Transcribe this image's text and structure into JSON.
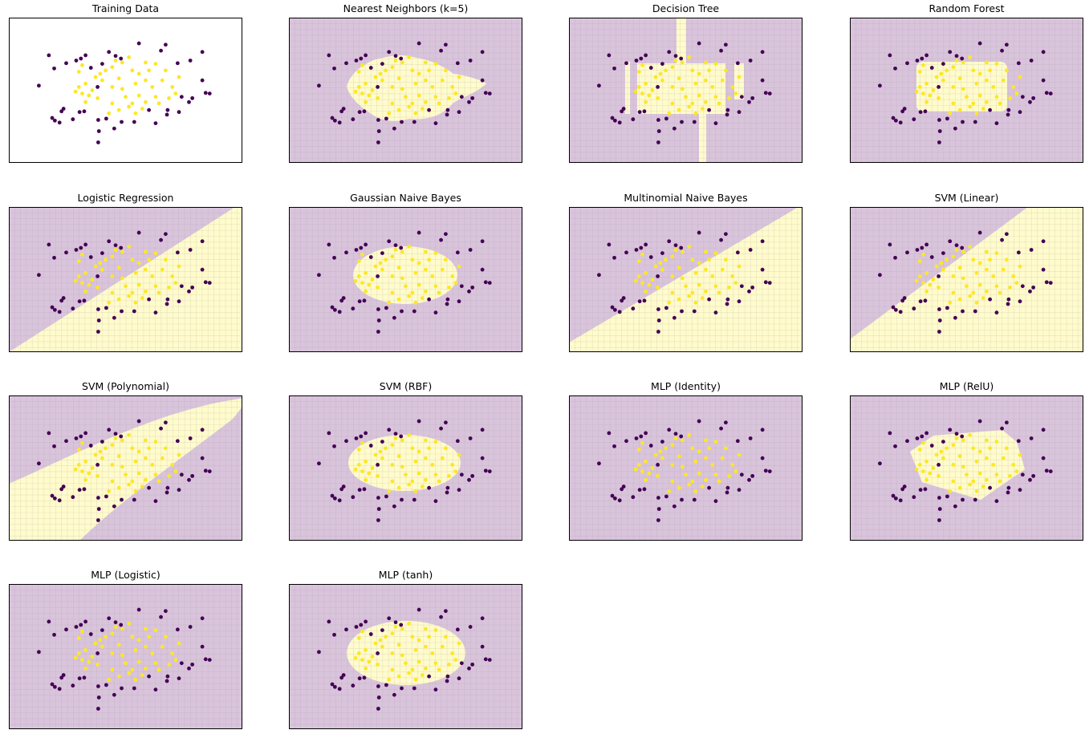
{
  "figure": {
    "rows": 4,
    "cols": 4,
    "colors": {
      "class0": "#440154",
      "class1": "#fde725",
      "region0": "#d9c4dc",
      "region1": "#fffbcc",
      "frame": "#000000"
    }
  },
  "chart_data": {
    "type": "scatter",
    "xlim": [
      -1.75,
      1.75
    ],
    "ylim": [
      -1.1,
      1.1
    ],
    "grid": false,
    "points": {
      "class0": [
        [
          -1.15,
          0.53
        ],
        [
          -1.07,
          0.33
        ],
        [
          -0.89,
          0.41
        ],
        [
          -0.74,
          0.45
        ],
        [
          -0.67,
          0.48
        ],
        [
          -0.6,
          0.53
        ],
        [
          -0.52,
          0.34
        ],
        [
          -0.35,
          0.4
        ],
        [
          -0.25,
          0.58
        ],
        [
          -0.15,
          0.52
        ],
        [
          -0.07,
          0.48
        ],
        [
          -0.42,
          0.05
        ],
        [
          0.2,
          0.71
        ],
        [
          0.6,
          0.69
        ],
        [
          0.53,
          0.6
        ],
        [
          0.97,
          0.45
        ],
        [
          1.15,
          0.58
        ],
        [
          0.78,
          0.41
        ],
        [
          1.15,
          0.15
        ],
        [
          1.26,
          -0.05
        ],
        [
          1.2,
          -0.04
        ],
        [
          1.0,
          -0.12
        ],
        [
          0.95,
          -0.18
        ],
        [
          0.84,
          -0.1
        ],
        [
          0.8,
          -0.33
        ],
        [
          0.63,
          -0.3
        ],
        [
          0.62,
          -0.37
        ],
        [
          0.35,
          -0.3
        ],
        [
          0.45,
          -0.5
        ],
        [
          0.13,
          -0.48
        ],
        [
          -0.06,
          -0.48
        ],
        [
          -0.17,
          -0.58
        ],
        [
          -0.29,
          -0.43
        ],
        [
          -0.41,
          -0.45
        ],
        [
          -0.4,
          -0.62
        ],
        [
          -0.41,
          -0.79
        ],
        [
          -0.62,
          -0.32
        ],
        [
          -0.69,
          -0.33
        ],
        [
          -0.79,
          -0.44
        ],
        [
          -0.96,
          -0.32
        ],
        [
          -0.93,
          -0.28
        ],
        [
          -0.99,
          -0.49
        ],
        [
          -1.1,
          -0.42
        ],
        [
          -1.06,
          -0.46
        ],
        [
          -1.3,
          0.07
        ]
      ],
      "class1": [
        [
          -0.65,
          0.38
        ],
        [
          -0.7,
          0.28
        ],
        [
          -0.6,
          0.1
        ],
        [
          -0.7,
          0.05
        ],
        [
          -0.75,
          -0.02
        ],
        [
          -0.65,
          -0.05
        ],
        [
          -0.5,
          0.0
        ],
        [
          -0.55,
          -0.08
        ],
        [
          -0.6,
          -0.18
        ],
        [
          -0.45,
          0.2
        ],
        [
          -0.38,
          0.25
        ],
        [
          -0.3,
          0.3
        ],
        [
          -0.2,
          0.35
        ],
        [
          -0.2,
          0.05
        ],
        [
          -0.1,
          0.18
        ],
        [
          -0.05,
          0.02
        ],
        [
          0.0,
          -0.1
        ],
        [
          -0.2,
          -0.2
        ],
        [
          -0.1,
          -0.3
        ],
        [
          0.05,
          -0.25
        ],
        [
          0.1,
          0.3
        ],
        [
          0.2,
          0.25
        ],
        [
          0.3,
          0.15
        ],
        [
          0.35,
          0.3
        ],
        [
          0.4,
          0.05
        ],
        [
          0.45,
          -0.1
        ],
        [
          0.3,
          -0.18
        ],
        [
          0.2,
          -0.08
        ],
        [
          0.1,
          -0.2
        ],
        [
          0.55,
          0.15
        ],
        [
          0.6,
          0.3
        ],
        [
          0.7,
          0.05
        ],
        [
          0.75,
          -0.05
        ],
        [
          0.65,
          -0.12
        ],
        [
          0.5,
          -0.2
        ],
        [
          0.25,
          -0.28
        ],
        [
          0.15,
          -0.35
        ],
        [
          -0.05,
          0.42
        ],
        [
          0.05,
          0.5
        ],
        [
          -0.15,
          0.45
        ],
        [
          0.3,
          0.42
        ],
        [
          0.45,
          0.4
        ],
        [
          -0.35,
          0.15
        ],
        [
          -0.42,
          -0.12
        ],
        [
          0.8,
          0.2
        ],
        [
          0.15,
          0.1
        ],
        [
          -0.25,
          -0.35
        ]
      ]
    },
    "panels": [
      {
        "title": "Training Data",
        "region": "none"
      },
      {
        "title": "Nearest Neighbors (k=5)",
        "region": "blob"
      },
      {
        "title": "Decision Tree",
        "region": "tree"
      },
      {
        "title": "Random Forest",
        "region": "rect"
      },
      {
        "title": "Logistic Regression",
        "region": "half_lr"
      },
      {
        "title": "Gaussian Naive Bayes",
        "region": "ellipse_small"
      },
      {
        "title": "Multinomial Naive Bayes",
        "region": "half_mnb"
      },
      {
        "title": "SVM (Linear)",
        "region": "half_svm"
      },
      {
        "title": "SVM (Polynomial)",
        "region": "poly"
      },
      {
        "title": "SVM (RBF)",
        "region": "ellipse_mid"
      },
      {
        "title": "MLP (Identity)",
        "region": "all0"
      },
      {
        "title": "MLP (RelU)",
        "region": "hexagon"
      },
      {
        "title": "MLP (Logistic)",
        "region": "all0"
      },
      {
        "title": "MLP (tanh)",
        "region": "ellipse_big"
      }
    ]
  }
}
